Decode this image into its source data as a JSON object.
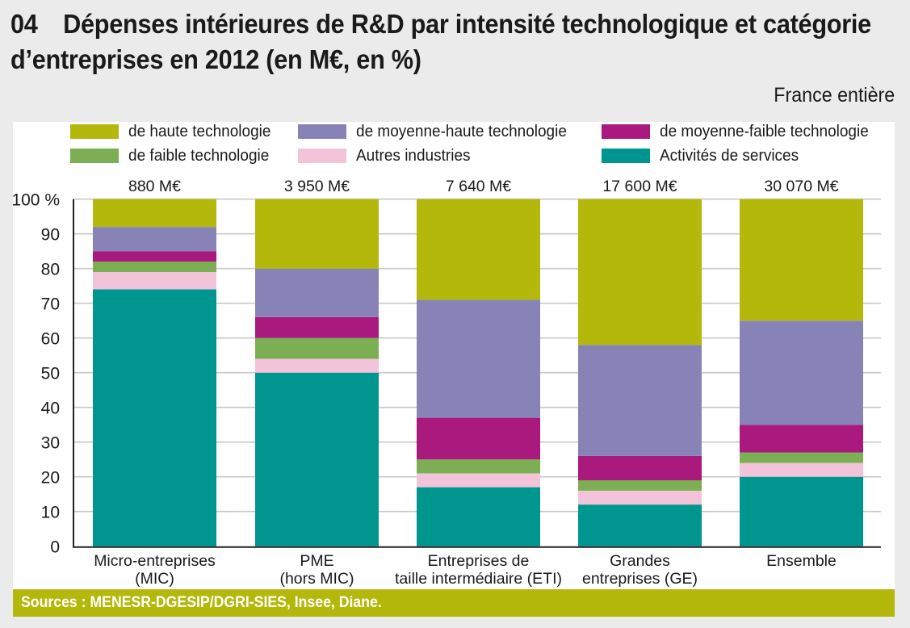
{
  "title": {
    "number": "04",
    "line1": "Dépenses intérieures de R&D par intensité technologique et catégorie",
    "line2": "d’entreprises en 2012 (en M€, en %)"
  },
  "scope": "France entière",
  "source": "Sources : MENESR-DGESIP/DGRI-SIES, Insee, Diane.",
  "chart_data": {
    "type": "bar",
    "stacked": true,
    "title": "Dépenses intérieures de R&D par intensité technologique et catégorie d’entreprises en 2012 (en M€, en %)",
    "xlabel": "",
    "ylabel": "",
    "ylim": [
      0,
      100
    ],
    "yticks": [
      0,
      10,
      20,
      30,
      40,
      50,
      60,
      70,
      80,
      90,
      100
    ],
    "ytick_labels": [
      "0",
      "10",
      "20",
      "30",
      "40",
      "50",
      "60",
      "70",
      "80",
      "90",
      "100 %"
    ],
    "grid": true,
    "legend_position": "top",
    "categories": [
      [
        "Micro-entreprises",
        "(MIC)"
      ],
      [
        "PME",
        "(hors MIC)"
      ],
      [
        "Entreprises de",
        "taille intermédiaire (ETI)"
      ],
      [
        "Grandes",
        "entreprises (GE)"
      ],
      [
        "Ensemble"
      ]
    ],
    "totals": [
      "880 M€",
      "3 950 M€",
      "7 640 M€",
      "17 600 M€",
      "30 070 M€"
    ],
    "series": [
      {
        "name": "Activités de services",
        "color": "#009690",
        "values": [
          74,
          50,
          17,
          12,
          20
        ]
      },
      {
        "name": "Autres industries",
        "color": "#f3c3d9",
        "values": [
          5,
          4,
          4,
          4,
          4
        ]
      },
      {
        "name": "de faible technologie",
        "color": "#7cae53",
        "values": [
          3,
          6,
          4,
          3,
          3
        ]
      },
      {
        "name": "de moyenne-faible technologie",
        "color": "#aa197d",
        "values": [
          3,
          6,
          12,
          7,
          8
        ]
      },
      {
        "name": "de moyenne-haute technologie",
        "color": "#8883b7",
        "values": [
          7,
          14,
          34,
          32,
          30
        ]
      },
      {
        "name": "de haute technologie",
        "color": "#b3b80b",
        "values": [
          8,
          20,
          29,
          42,
          35
        ]
      }
    ],
    "legend_order": [
      "de haute technologie",
      "de moyenne-haute technologie",
      "de moyenne-faible technologie",
      "de faible technologie",
      "Autres industries",
      "Activités de services"
    ]
  }
}
